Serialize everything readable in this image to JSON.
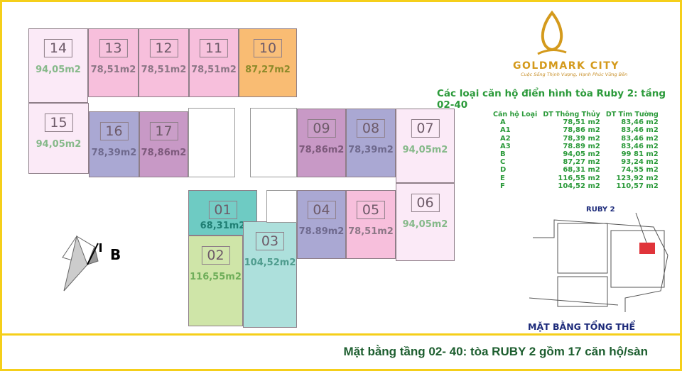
{
  "brand": {
    "name": "GOLDMARK CITY",
    "slogan": "Cuộc Sống Thịnh Vượng, Hạnh Phúc Vững Bền"
  },
  "table_title": "Các loại căn hộ điển hình tòa Ruby 2: tầng 02-40",
  "table": {
    "headers": [
      "Căn hộ Loại",
      "DT Thông Thủy",
      "DT Tim Tường"
    ],
    "rows": [
      [
        "A",
        "78,51 m2",
        "83,46 m2"
      ],
      [
        "A1",
        "78,86 m2",
        "83,46 m2"
      ],
      [
        "A2",
        "78,39 m2",
        "83,46 m2"
      ],
      [
        "A3",
        "78.89 m2",
        "83,46 m2"
      ],
      [
        "B",
        "94,05 m2",
        "99 81 m2"
      ],
      [
        "C",
        "87,27 m2",
        "93,24 m2"
      ],
      [
        "D",
        "68,31 m2",
        "74,55 m2"
      ],
      [
        "E",
        "116,55 m2",
        "123,92 m2"
      ],
      [
        "F",
        "104,52 m2",
        "110,57 m2"
      ]
    ]
  },
  "site_map": {
    "label": "RUBY 2",
    "title": "MẶT BẰNG TỔNG THỂ",
    "highlight_color": "#e0343a"
  },
  "compass": {
    "label": "B"
  },
  "units": [
    {
      "id": "14",
      "area": "94,05m2",
      "fill": "#fbeaf7",
      "area_color": "#86b98a"
    },
    {
      "id": "13",
      "area": "78,51m2",
      "fill": "#f7bfdc",
      "area_color": "#8c7786"
    },
    {
      "id": "12",
      "area": "78,51m2",
      "fill": "#f7bfdc",
      "area_color": "#8c7786"
    },
    {
      "id": "11",
      "area": "78,51m2",
      "fill": "#f7bfdc",
      "area_color": "#8c7786"
    },
    {
      "id": "10",
      "area": "87,27m2",
      "fill": "#f9bc73",
      "area_color": "#8d8a2a"
    },
    {
      "id": "15",
      "area": "94,05m2",
      "fill": "#fbeaf7",
      "area_color": "#86b98a"
    },
    {
      "id": "16",
      "area": "78,39m2",
      "fill": "#aaa8d3",
      "area_color": "#6f6a8e"
    },
    {
      "id": "17",
      "area": "78,86m2",
      "fill": "#c899c6",
      "area_color": "#7d5a7c"
    },
    {
      "id": "09",
      "area": "78,86m2",
      "fill": "#c899c6",
      "area_color": "#7d5a7c"
    },
    {
      "id": "08",
      "area": "78,39m2",
      "fill": "#aaa8d3",
      "area_color": "#6f6a8e"
    },
    {
      "id": "07",
      "area": "94,05m2",
      "fill": "#fbeaf7",
      "area_color": "#86b98a"
    },
    {
      "id": "01",
      "area": "68,31m2",
      "fill": "#6ecbc3",
      "area_color": "#1f7e73"
    },
    {
      "id": "04",
      "area": "78.89m2",
      "fill": "#aaa8d3",
      "area_color": "#6f6a8e"
    },
    {
      "id": "05",
      "area": "78,51m2",
      "fill": "#f7bfdc",
      "area_color": "#8c7786"
    },
    {
      "id": "06",
      "area": "94,05m2",
      "fill": "#fbeaf7",
      "area_color": "#86b98a"
    },
    {
      "id": "02",
      "area": "116,55m2",
      "fill": "#cfe5a8",
      "area_color": "#6fae5a"
    },
    {
      "id": "03",
      "area": "104,52m2",
      "fill": "#ade0dc",
      "area_color": "#4f9c8e"
    }
  ],
  "caption": "Mặt bằng tầng 02- 40:  tòa RUBY 2 gồm 17 căn hộ/sàn"
}
